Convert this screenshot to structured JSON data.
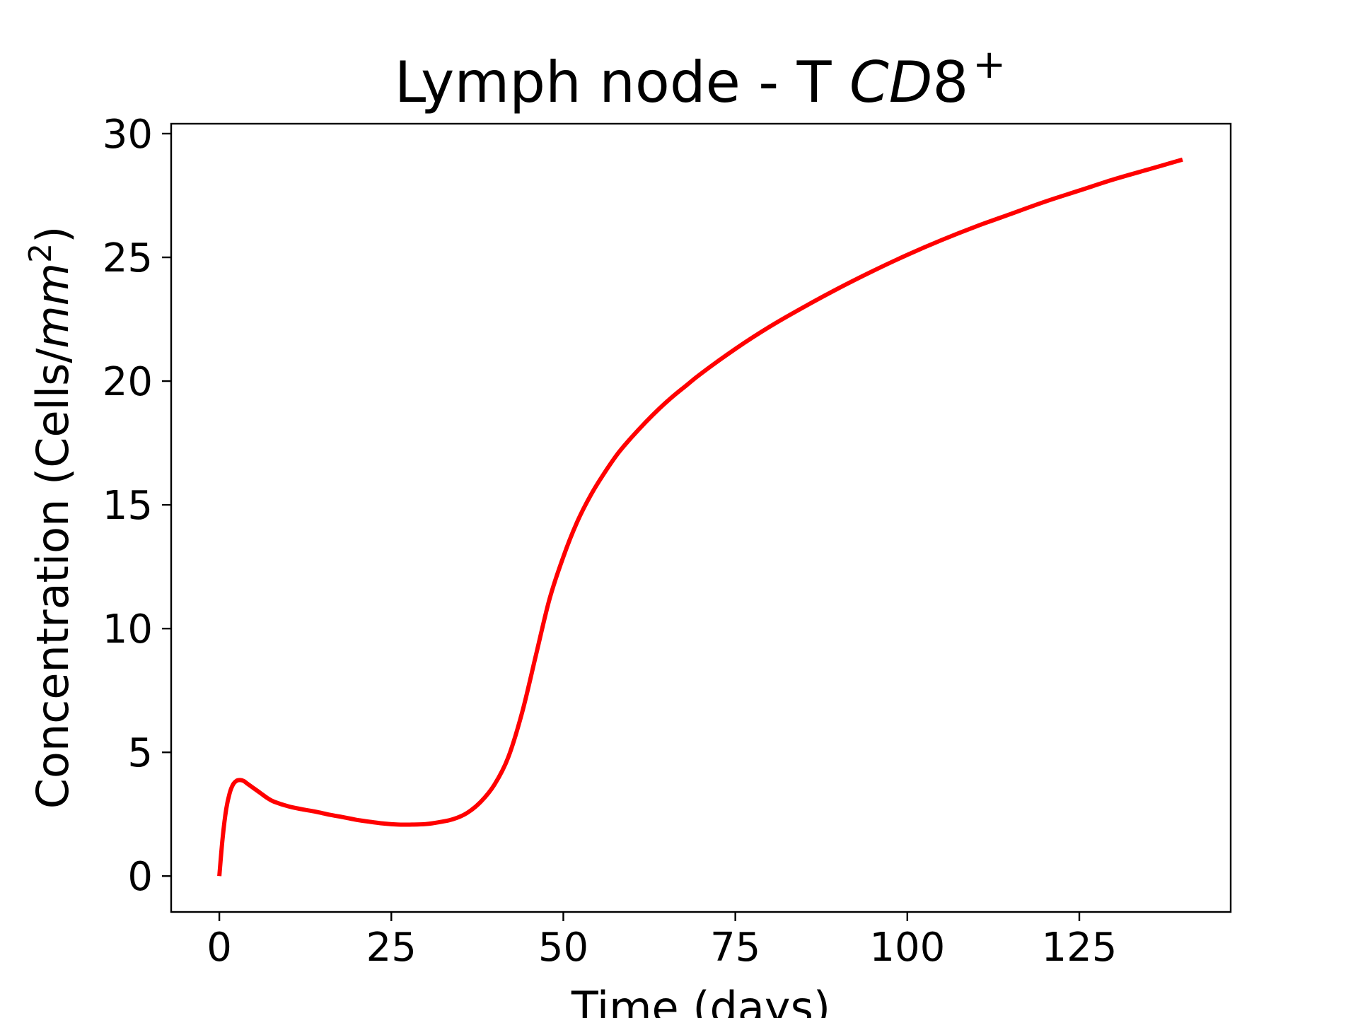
{
  "chart_data": {
    "type": "line",
    "title": {
      "prefix": "Lymph node - T ",
      "math_italic": "CD",
      "math_digit": "8",
      "superscript": "+"
    },
    "xlabel": "Time (days)",
    "ylabel": {
      "prefix": "Concentration (Cells/",
      "math_italic": "mm",
      "superscript": "2",
      "suffix": ")"
    },
    "xlim": [
      -7,
      147
    ],
    "ylim": [
      -1.45,
      30.4
    ],
    "xticks": [
      0,
      25,
      50,
      75,
      100,
      125
    ],
    "xtick_labels": [
      "0",
      "25",
      "50",
      "75",
      "100",
      "125"
    ],
    "yticks": [
      0,
      5,
      10,
      15,
      20,
      25,
      30
    ],
    "ytick_labels": [
      "0",
      "5",
      "10",
      "15",
      "20",
      "25",
      "30"
    ],
    "grid": false,
    "legend": "none",
    "series": [
      {
        "color": "#ff0000",
        "x": [
          0,
          0.5,
          1,
          1.5,
          2,
          2.5,
          3,
          3.5,
          4,
          5,
          6,
          7,
          8,
          10,
          12,
          14,
          16,
          18,
          20,
          22,
          24,
          26,
          28,
          30,
          32,
          34,
          36,
          38,
          40,
          42,
          44,
          46,
          48,
          50,
          52,
          54,
          56,
          58,
          60,
          62,
          64,
          66,
          68,
          70,
          75,
          80,
          85,
          90,
          95,
          100,
          105,
          110,
          115,
          120,
          125,
          130,
          135,
          140
        ],
        "y": [
          0,
          1.6,
          2.7,
          3.35,
          3.7,
          3.85,
          3.88,
          3.85,
          3.75,
          3.55,
          3.35,
          3.15,
          3.0,
          2.82,
          2.7,
          2.6,
          2.48,
          2.38,
          2.27,
          2.19,
          2.12,
          2.08,
          2.08,
          2.1,
          2.18,
          2.3,
          2.55,
          3.0,
          3.7,
          4.8,
          6.6,
          8.9,
          11.2,
          12.9,
          14.3,
          15.4,
          16.3,
          17.1,
          17.75,
          18.35,
          18.9,
          19.4,
          19.85,
          20.3,
          21.3,
          22.2,
          23.0,
          23.75,
          24.45,
          25.1,
          25.7,
          26.25,
          26.75,
          27.25,
          27.7,
          28.15,
          28.55,
          28.95
        ]
      }
    ]
  }
}
